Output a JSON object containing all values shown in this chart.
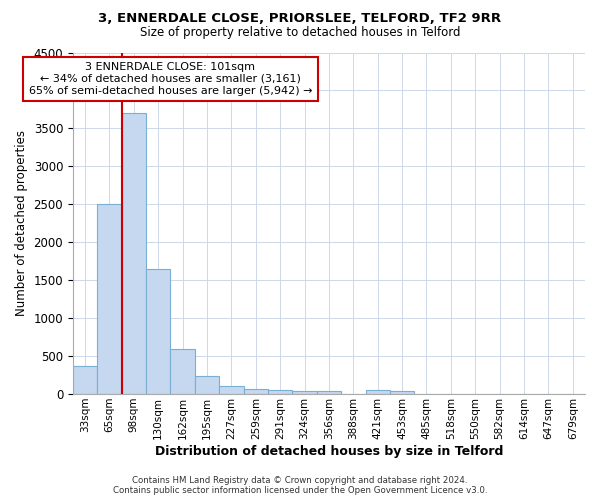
{
  "title1": "3, ENNERDALE CLOSE, PRIORSLEE, TELFORD, TF2 9RR",
  "title2": "Size of property relative to detached houses in Telford",
  "xlabel": "Distribution of detached houses by size in Telford",
  "ylabel": "Number of detached properties",
  "categories": [
    "33sqm",
    "65sqm",
    "98sqm",
    "130sqm",
    "162sqm",
    "195sqm",
    "227sqm",
    "259sqm",
    "291sqm",
    "324sqm",
    "356sqm",
    "388sqm",
    "421sqm",
    "453sqm",
    "485sqm",
    "518sqm",
    "550sqm",
    "582sqm",
    "614sqm",
    "647sqm",
    "679sqm"
  ],
  "values": [
    375,
    2500,
    3700,
    1650,
    600,
    240,
    110,
    65,
    55,
    45,
    45,
    0,
    55,
    40,
    0,
    0,
    0,
    0,
    0,
    0,
    0
  ],
  "bar_color": "#c5d8f0",
  "bar_edge_color": "#7aafd4",
  "ylim": [
    0,
    4500
  ],
  "yticks": [
    0,
    500,
    1000,
    1500,
    2000,
    2500,
    3000,
    3500,
    4000,
    4500
  ],
  "vline_x": 2.0,
  "vline_color": "#cc0000",
  "annot_line1": "3 ENNERDALE CLOSE: 101sqm",
  "annot_line2": "← 34% of detached houses are smaller (3,161)",
  "annot_line3": "65% of semi-detached houses are larger (5,942) →",
  "footer_text": "Contains HM Land Registry data © Crown copyright and database right 2024.\nContains public sector information licensed under the Open Government Licence v3.0.",
  "background_color": "#ffffff",
  "grid_color": "#cdd8ea"
}
